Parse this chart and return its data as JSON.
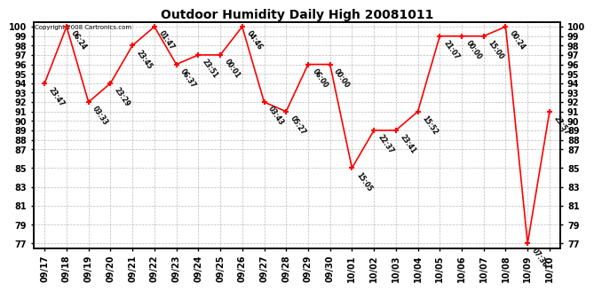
{
  "title": "Outdoor Humidity Daily High 20081011",
  "copyright": "Copyright 2008 Cartronics.com",
  "x_labels": [
    "09/17",
    "09/18",
    "09/19",
    "09/20",
    "09/21",
    "09/22",
    "09/23",
    "09/24",
    "09/25",
    "09/26",
    "09/27",
    "09/28",
    "09/29",
    "09/30",
    "10/01",
    "10/02",
    "10/03",
    "10/04",
    "10/05",
    "10/06",
    "10/07",
    "10/08",
    "10/09",
    "10/10"
  ],
  "y_values": [
    94,
    100,
    92,
    94,
    98,
    100,
    96,
    97,
    97,
    100,
    92,
    91,
    96,
    96,
    85,
    89,
    89,
    91,
    99,
    99,
    99,
    100,
    77,
    91
  ],
  "point_labels": [
    "23:47",
    "06:24",
    "03:33",
    "23:29",
    "23:45",
    "01:47",
    "06:37",
    "23:51",
    "00:01",
    "04:46",
    "03:43",
    "05:27",
    "06:00",
    "00:00",
    "15:05",
    "22:37",
    "23:41",
    "15:52",
    "21:07",
    "00:00",
    "15:00",
    "00:24",
    "07:36",
    "23:57"
  ],
  "ylim_min": 77,
  "ylim_max": 100,
  "yticks": [
    77,
    79,
    81,
    83,
    85,
    87,
    88,
    89,
    90,
    91,
    92,
    93,
    94,
    95,
    96,
    97,
    98,
    99,
    100
  ],
  "line_color": "red",
  "marker_color": "red",
  "background_color": "white",
  "grid_color": "#aaaaaa"
}
